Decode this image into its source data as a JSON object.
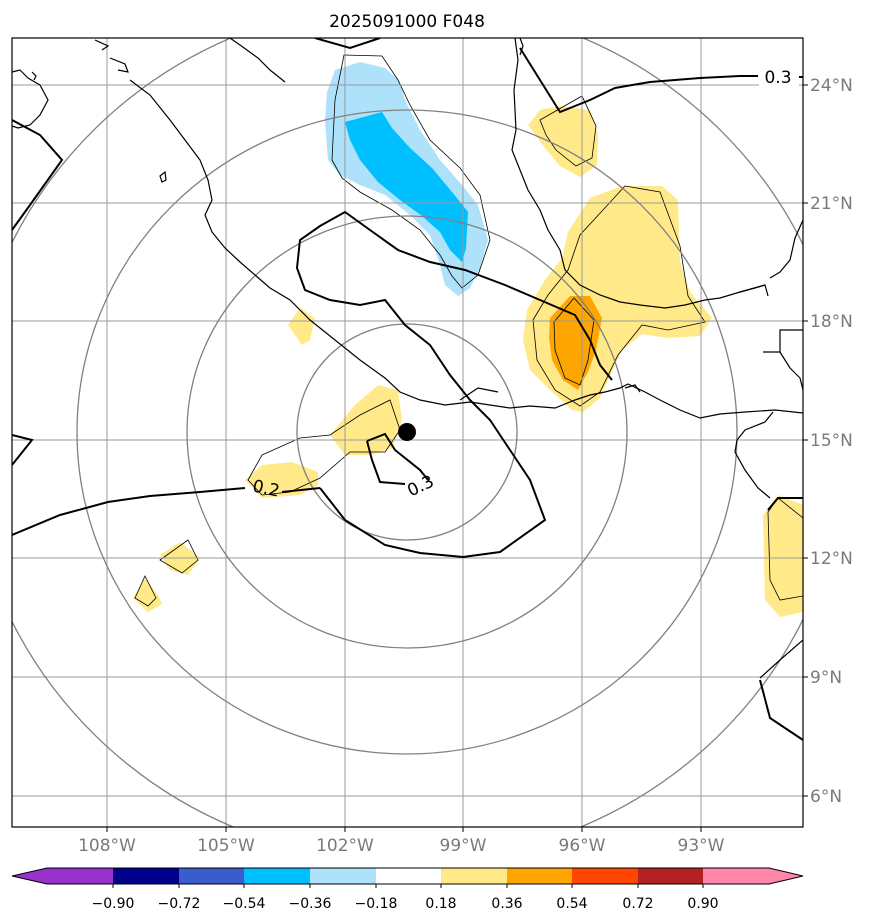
{
  "title": "2025091000 F048",
  "longitude_labels": [
    "108°W",
    "105°W",
    "102°W",
    "99°W",
    "96°W",
    "93°W"
  ],
  "latitude_labels": [
    "24°N",
    "21°N",
    "18°N",
    "15°N",
    "12°N",
    "9°N",
    "6°N"
  ],
  "contour_labels": [
    "0.3",
    "0.2",
    "0.3"
  ],
  "colorbar": {
    "tick_labels": [
      "−0.90",
      "−0.72",
      "−0.54",
      "−0.36",
      "−0.18",
      "0.18",
      "0.36",
      "0.54",
      "0.72",
      "0.90"
    ],
    "colors": [
      "#9932cc",
      "#00008b",
      "#3a5ccc",
      "#00bfff",
      "#aee1fa",
      "#ffffff",
      "#ffe989",
      "#ffa500",
      "#ff4500",
      "#b22222",
      "#ff88aa"
    ]
  },
  "colors": {
    "grid": "#999999",
    "range_ring": "#808080",
    "coast": "#000000",
    "blue_light": "#aee1fa",
    "blue": "#00bfff",
    "yellow": "#ffe989",
    "orange": "#ffa500"
  }
}
